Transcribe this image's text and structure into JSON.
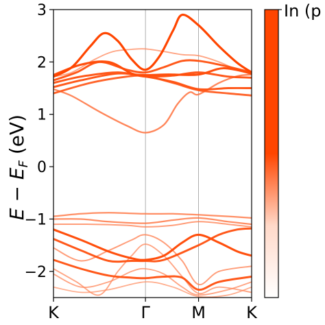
{
  "chart_data": {
    "type": "line",
    "title": "",
    "xlabel": "",
    "ylabel": "E − E_F (eV)",
    "ylabel_main": "E − E",
    "ylabel_sub": "F",
    "ylabel_unit": " (eV)",
    "x_ticks": [
      {
        "x": 0,
        "label": "K"
      },
      {
        "x": 1,
        "label": "Γ"
      },
      {
        "x": 1.5774,
        "label": "M"
      },
      {
        "x": 2.1547,
        "label": "K"
      }
    ],
    "xlim": [
      0,
      2.1547
    ],
    "ylim": [
      -2.5,
      3
    ],
    "y_ticks": [
      -2,
      -1,
      0,
      1,
      2,
      3
    ],
    "y_tick_labels": [
      "−2",
      "−1",
      "0",
      "1",
      "2",
      "3"
    ],
    "grid_vertical_at": [
      1,
      1.5774
    ],
    "colorbar": {
      "label": "In (p",
      "colormap": "white-to-orange",
      "color_low": "#ffffff",
      "color_high": "#ff4500"
    },
    "series": [
      {
        "weight": 0.45,
        "points": [
          [
            0,
            1.72
          ],
          [
            0.2,
            1.8
          ],
          [
            0.45,
            2.05
          ],
          [
            0.65,
            2.2
          ],
          [
            0.85,
            2.24
          ],
          [
            1,
            2.25
          ],
          [
            1.2,
            2.2
          ],
          [
            1.4,
            2.14
          ],
          [
            1.5774,
            2.12
          ],
          [
            1.8,
            2.0
          ],
          [
            2.0,
            1.85
          ],
          [
            2.1547,
            1.78
          ]
        ]
      },
      {
        "weight": 0.65,
        "points": [
          [
            0,
            1.48
          ],
          [
            0.2,
            1.35
          ],
          [
            0.5,
            1.05
          ],
          [
            0.8,
            0.78
          ],
          [
            1,
            0.65
          ],
          [
            1.2,
            0.8
          ],
          [
            1.35,
            1.2
          ],
          [
            1.48,
            1.42
          ],
          [
            1.5774,
            1.38
          ],
          [
            1.8,
            1.6
          ],
          [
            2.0,
            1.73
          ],
          [
            2.1547,
            1.76
          ]
        ]
      },
      {
        "weight": 1.0,
        "points": [
          [
            0,
            1.72
          ],
          [
            0.2,
            1.9
          ],
          [
            0.4,
            2.3
          ],
          [
            0.55,
            2.55
          ],
          [
            0.7,
            2.4
          ],
          [
            0.85,
            2.05
          ],
          [
            1,
            1.85
          ],
          [
            1.15,
            2.1
          ],
          [
            1.3,
            2.6
          ],
          [
            1.4,
            2.9
          ],
          [
            1.5774,
            2.7
          ],
          [
            1.8,
            2.3
          ],
          [
            2.0,
            1.98
          ],
          [
            2.1547,
            1.8
          ]
        ]
      },
      {
        "weight": 0.9,
        "points": [
          [
            0,
            1.65
          ],
          [
            0.25,
            1.8
          ],
          [
            0.5,
            2.0
          ],
          [
            0.8,
            1.85
          ],
          [
            1,
            1.8
          ],
          [
            1.2,
            1.9
          ],
          [
            1.4,
            2.02
          ],
          [
            1.5774,
            2.02
          ],
          [
            1.8,
            1.95
          ],
          [
            2.1547,
            1.8
          ]
        ]
      },
      {
        "weight": 0.95,
        "points": [
          [
            0,
            1.75
          ],
          [
            0.3,
            1.95
          ],
          [
            0.6,
            2.0
          ],
          [
            0.85,
            1.78
          ],
          [
            1,
            1.75
          ],
          [
            1.25,
            1.76
          ],
          [
            1.5774,
            1.76
          ],
          [
            1.85,
            1.88
          ],
          [
            2.1547,
            1.78
          ]
        ]
      },
      {
        "weight": 0.9,
        "points": [
          [
            0,
            1.6
          ],
          [
            0.3,
            1.72
          ],
          [
            0.7,
            1.8
          ],
          [
            1,
            1.72
          ],
          [
            1.3,
            1.74
          ],
          [
            1.5774,
            1.8
          ],
          [
            1.9,
            1.72
          ],
          [
            2.1547,
            1.7
          ]
        ]
      },
      {
        "weight": 0.9,
        "points": [
          [
            0,
            1.52
          ],
          [
            0.3,
            1.65
          ],
          [
            0.7,
            1.78
          ],
          [
            1,
            1.72
          ],
          [
            1.3,
            1.62
          ],
          [
            1.5774,
            1.48
          ],
          [
            1.9,
            1.5
          ],
          [
            2.1547,
            1.5
          ]
        ]
      },
      {
        "weight": 0.85,
        "points": [
          [
            0,
            1.4
          ],
          [
            0.4,
            1.6
          ],
          [
            0.8,
            1.72
          ],
          [
            1,
            1.73
          ],
          [
            1.3,
            1.6
          ],
          [
            1.5774,
            1.46
          ],
          [
            1.9,
            1.4
          ],
          [
            2.1547,
            1.36
          ]
        ]
      },
      {
        "weight": 0.6,
        "points": [
          [
            0,
            -0.95
          ],
          [
            0.3,
            -0.9
          ],
          [
            0.6,
            -0.88
          ],
          [
            1,
            -0.9
          ],
          [
            1.3,
            -0.9
          ],
          [
            1.5774,
            -0.92
          ],
          [
            1.9,
            -0.95
          ],
          [
            2.1547,
            -0.98
          ]
        ]
      },
      {
        "weight": 0.6,
        "points": [
          [
            0,
            -1.0
          ],
          [
            0.3,
            -1.0
          ],
          [
            0.6,
            -1.05
          ],
          [
            1,
            -1.08
          ],
          [
            1.3,
            -1.02
          ],
          [
            1.5774,
            -0.98
          ],
          [
            1.9,
            -1.05
          ],
          [
            2.1547,
            -1.1
          ]
        ]
      },
      {
        "weight": 0.5,
        "points": [
          [
            0,
            -1.1
          ],
          [
            0.4,
            -1.1
          ],
          [
            0.8,
            -1.12
          ],
          [
            1,
            -1.15
          ],
          [
            1.3,
            -1.12
          ],
          [
            1.5774,
            -1.05
          ],
          [
            1.9,
            -1.1
          ],
          [
            2.1547,
            -1.15
          ]
        ]
      },
      {
        "weight": 0.95,
        "points": [
          [
            0,
            -1.2
          ],
          [
            0.3,
            -1.4
          ],
          [
            0.6,
            -1.62
          ],
          [
            0.85,
            -1.75
          ],
          [
            1,
            -1.78
          ],
          [
            1.2,
            -1.7
          ],
          [
            1.4,
            -1.45
          ],
          [
            1.5774,
            -1.3
          ],
          [
            1.8,
            -1.45
          ],
          [
            2.0,
            -1.62
          ],
          [
            2.1547,
            -1.7
          ]
        ]
      },
      {
        "weight": 0.9,
        "points": [
          [
            0,
            -1.38
          ],
          [
            0.3,
            -1.6
          ],
          [
            0.6,
            -1.8
          ],
          [
            0.85,
            -1.8
          ],
          [
            1,
            -1.8
          ],
          [
            1.2,
            -1.78
          ],
          [
            1.5774,
            -1.5
          ],
          [
            1.8,
            -1.3
          ],
          [
            2.0,
            -1.2
          ],
          [
            2.1547,
            -1.18
          ]
        ]
      },
      {
        "weight": 0.9,
        "points": [
          [
            0,
            -1.78
          ],
          [
            0.3,
            -1.95
          ],
          [
            0.6,
            -2.08
          ],
          [
            0.85,
            -2.12
          ],
          [
            1,
            -2.13
          ],
          [
            1.2,
            -2.1
          ],
          [
            1.4,
            -2.12
          ],
          [
            1.5774,
            -2.35
          ],
          [
            1.8,
            -2.2
          ],
          [
            2.1547,
            -2.1
          ]
        ]
      },
      {
        "weight": 0.5,
        "points": [
          [
            0,
            -1.55
          ],
          [
            0.3,
            -1.8
          ],
          [
            0.6,
            -1.6
          ],
          [
            0.85,
            -1.4
          ],
          [
            1,
            -1.3
          ],
          [
            1.2,
            -1.45
          ],
          [
            1.4,
            -1.8
          ],
          [
            1.5774,
            -2.25
          ],
          [
            1.8,
            -2.0
          ],
          [
            2.1547,
            -1.9
          ]
        ]
      },
      {
        "weight": 0.45,
        "points": [
          [
            0,
            -1.95
          ],
          [
            0.25,
            -2.2
          ],
          [
            0.5,
            -2.45
          ],
          [
            0.7,
            -2.0
          ],
          [
            0.85,
            -1.7
          ],
          [
            1,
            -1.48
          ],
          [
            1.2,
            -1.7
          ],
          [
            1.4,
            -2.1
          ],
          [
            1.5774,
            -2.42
          ],
          [
            1.8,
            -2.3
          ],
          [
            2.1547,
            -2.4
          ]
        ]
      },
      {
        "weight": 0.45,
        "points": [
          [
            0,
            -2.05
          ],
          [
            0.3,
            -2.3
          ],
          [
            0.6,
            -2.2
          ],
          [
            0.85,
            -2.0
          ],
          [
            1,
            -1.95
          ],
          [
            1.2,
            -2.05
          ],
          [
            1.4,
            -2.3
          ],
          [
            1.5774,
            -2.45
          ],
          [
            1.9,
            -2.35
          ],
          [
            2.1547,
            -2.2
          ]
        ]
      },
      {
        "weight": 0.4,
        "points": [
          [
            0,
            -2.3
          ],
          [
            0.3,
            -2.4
          ],
          [
            0.6,
            -2.35
          ],
          [
            1,
            -2.2
          ],
          [
            1.3,
            -2.3
          ],
          [
            1.5774,
            -2.48
          ],
          [
            1.9,
            -2.45
          ],
          [
            2.1547,
            -2.3
          ]
        ]
      }
    ]
  }
}
